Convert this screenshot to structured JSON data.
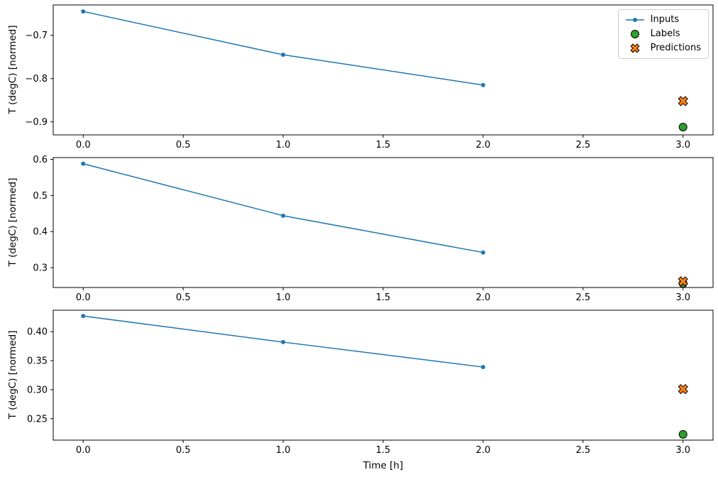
{
  "colors": {
    "inputs": "#1f77b4",
    "labels": "#2ca02c",
    "predictions": "#ff7f0e",
    "axes": "#000000"
  },
  "legend": {
    "items": [
      {
        "label": "Inputs"
      },
      {
        "label": "Labels"
      },
      {
        "label": "Predictions"
      }
    ]
  },
  "chart_data": [
    {
      "type": "line",
      "title": "",
      "xlabel": "",
      "ylabel": "T (degC) [normed]",
      "xlim": [
        -0.15,
        3.15
      ],
      "ylim": [
        -0.93,
        -0.63
      ],
      "xticks": [
        0.0,
        0.5,
        1.0,
        1.5,
        2.0,
        2.5,
        3.0
      ],
      "xtick_labels": [
        "0.0",
        "0.5",
        "1.0",
        "1.5",
        "2.0",
        "2.5",
        "3.0"
      ],
      "yticks": [
        -0.9,
        -0.8,
        -0.7
      ],
      "ytick_labels": [
        "−0.9",
        "−0.8",
        "−0.7"
      ],
      "grid": false,
      "legend_position": "upper right",
      "series": [
        {
          "name": "Inputs",
          "marker": "dot",
          "color": "#1f77b4",
          "x": [
            0.0,
            1.0,
            2.0
          ],
          "y": [
            -0.645,
            -0.745,
            -0.815
          ]
        },
        {
          "name": "Labels",
          "marker": "circle",
          "color": "#2ca02c",
          "x": [
            3.0
          ],
          "y": [
            -0.912
          ]
        },
        {
          "name": "Predictions",
          "marker": "X",
          "color": "#ff7f0e",
          "x": [
            3.0
          ],
          "y": [
            -0.852
          ]
        }
      ]
    },
    {
      "type": "line",
      "title": "",
      "xlabel": "",
      "ylabel": "T (degC) [normed]",
      "xlim": [
        -0.15,
        3.15
      ],
      "ylim": [
        0.245,
        0.605
      ],
      "xticks": [
        0.0,
        0.5,
        1.0,
        1.5,
        2.0,
        2.5,
        3.0
      ],
      "xtick_labels": [
        "0.0",
        "0.5",
        "1.0",
        "1.5",
        "2.0",
        "2.5",
        "3.0"
      ],
      "yticks": [
        0.3,
        0.4,
        0.5,
        0.6
      ],
      "ytick_labels": [
        "0.3",
        "0.4",
        "0.5",
        "0.6"
      ],
      "grid": false,
      "legend_position": "none",
      "series": [
        {
          "name": "Inputs",
          "marker": "dot",
          "color": "#1f77b4",
          "x": [
            0.0,
            1.0,
            2.0
          ],
          "y": [
            0.588,
            0.444,
            0.342
          ]
        },
        {
          "name": "Labels",
          "marker": "circle",
          "color": "#2ca02c",
          "x": [
            3.0
          ],
          "y": [
            0.256
          ]
        },
        {
          "name": "Predictions",
          "marker": "X",
          "color": "#ff7f0e",
          "x": [
            3.0
          ],
          "y": [
            0.262
          ]
        }
      ]
    },
    {
      "type": "line",
      "title": "",
      "xlabel": "Time [h]",
      "ylabel": "T (degC) [normed]",
      "xlim": [
        -0.15,
        3.15
      ],
      "ylim": [
        0.213,
        0.437
      ],
      "xticks": [
        0.0,
        0.5,
        1.0,
        1.5,
        2.0,
        2.5,
        3.0
      ],
      "xtick_labels": [
        "0.0",
        "0.5",
        "1.0",
        "1.5",
        "2.0",
        "2.5",
        "3.0"
      ],
      "yticks": [
        0.25,
        0.3,
        0.35,
        0.4
      ],
      "ytick_labels": [
        "0.25",
        "0.30",
        "0.35",
        "0.40"
      ],
      "grid": false,
      "legend_position": "none",
      "series": [
        {
          "name": "Inputs",
          "marker": "dot",
          "color": "#1f77b4",
          "x": [
            0.0,
            1.0,
            2.0
          ],
          "y": [
            0.427,
            0.382,
            0.339
          ]
        },
        {
          "name": "Labels",
          "marker": "circle",
          "color": "#2ca02c",
          "x": [
            3.0
          ],
          "y": [
            0.223
          ]
        },
        {
          "name": "Predictions",
          "marker": "X",
          "color": "#ff7f0e",
          "x": [
            3.0
          ],
          "y": [
            0.301
          ]
        }
      ]
    }
  ]
}
